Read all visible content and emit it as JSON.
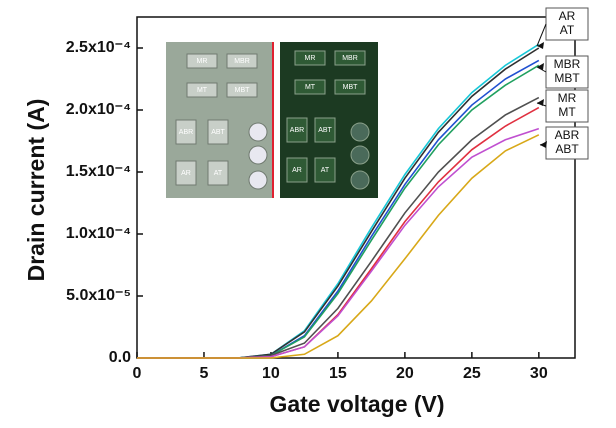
{
  "chart_data": {
    "type": "line",
    "xlabel": "Gate voltage (V)",
    "ylabel": "Drain current (A)",
    "x": [
      0,
      2.5,
      5,
      7.5,
      10,
      12.5,
      15,
      17.5,
      20,
      22.5,
      25,
      27.5,
      30
    ],
    "series": [
      {
        "color": "#18c8d8",
        "values": [
          0,
          0,
          0,
          0,
          3e-06,
          2.2e-05,
          6e-05,
          0.000105,
          0.000148,
          0.000185,
          0.000214,
          0.000236,
          0.000253
        ]
      },
      {
        "color": "#303030",
        "values": [
          0,
          0,
          0,
          0,
          3e-06,
          2.1e-05,
          5.8e-05,
          0.000102,
          0.000145,
          0.000182,
          0.000211,
          0.000233,
          0.00025
        ]
      },
      {
        "color": "#2050d0",
        "values": [
          0,
          0,
          0,
          0,
          2e-06,
          1.8e-05,
          5.4e-05,
          9.8e-05,
          0.00014,
          0.000176,
          0.000204,
          0.000225,
          0.00024
        ]
      },
      {
        "color": "#20a060",
        "values": [
          0,
          0,
          0,
          0,
          2e-06,
          1.7e-05,
          5.2e-05,
          9.5e-05,
          0.000137,
          0.000172,
          0.0002,
          0.00022,
          0.000236
        ]
      },
      {
        "color": "#505050",
        "values": [
          0,
          0,
          0,
          0,
          2e-06,
          1.2e-05,
          4e-05,
          7.8e-05,
          0.000117,
          0.00015,
          0.000176,
          0.000196,
          0.00021
        ]
      },
      {
        "color": "#e03040",
        "values": [
          0,
          0,
          0,
          0,
          1e-06,
          9e-06,
          3.5e-05,
          7.2e-05,
          0.00011,
          0.000142,
          0.000168,
          0.000187,
          0.000202
        ]
      },
      {
        "color": "#c050d0",
        "values": [
          0,
          0,
          0,
          0,
          1e-06,
          9e-06,
          3.4e-05,
          7e-05,
          0.000107,
          0.000138,
          0.000162,
          0.000176,
          0.000185
        ]
      },
      {
        "color": "#d8a818",
        "values": [
          0,
          0,
          0,
          0,
          0,
          3e-06,
          1.8e-05,
          4.6e-05,
          8e-05,
          0.000115,
          0.000145,
          0.000167,
          0.00018
        ]
      }
    ],
    "xlim": [
      0,
      32.7
    ],
    "ylim": [
      0,
      0.000275
    ],
    "xticks": [
      0,
      5,
      10,
      15,
      20,
      25,
      30
    ],
    "yticks": [
      {
        "value": 0,
        "label": "0.0"
      },
      {
        "value": 5e-05,
        "label": "5.0x10⁻⁵"
      },
      {
        "value": 0.0001,
        "label": "1.0x10⁻⁴"
      },
      {
        "value": 0.00015,
        "label": "1.5x10⁻⁴"
      },
      {
        "value": 0.0002,
        "label": "2.0x10⁻⁴"
      },
      {
        "value": 0.00025,
        "label": "2.5x10⁻⁴"
      }
    ],
    "annotations": [
      [
        "AR",
        "AT"
      ],
      [
        "MBR",
        "MBT"
      ],
      [
        "MR",
        "MT"
      ],
      [
        "ABR",
        "ABT"
      ]
    ],
    "inset": {
      "left": [
        "MR",
        "MBR",
        "MT",
        "MBT",
        "ABR",
        "ABT",
        "AR",
        "AT"
      ],
      "right": [
        "MR",
        "MBR",
        "MT",
        "MBT",
        "ABR",
        "ABT",
        "AR",
        "AT"
      ]
    }
  }
}
